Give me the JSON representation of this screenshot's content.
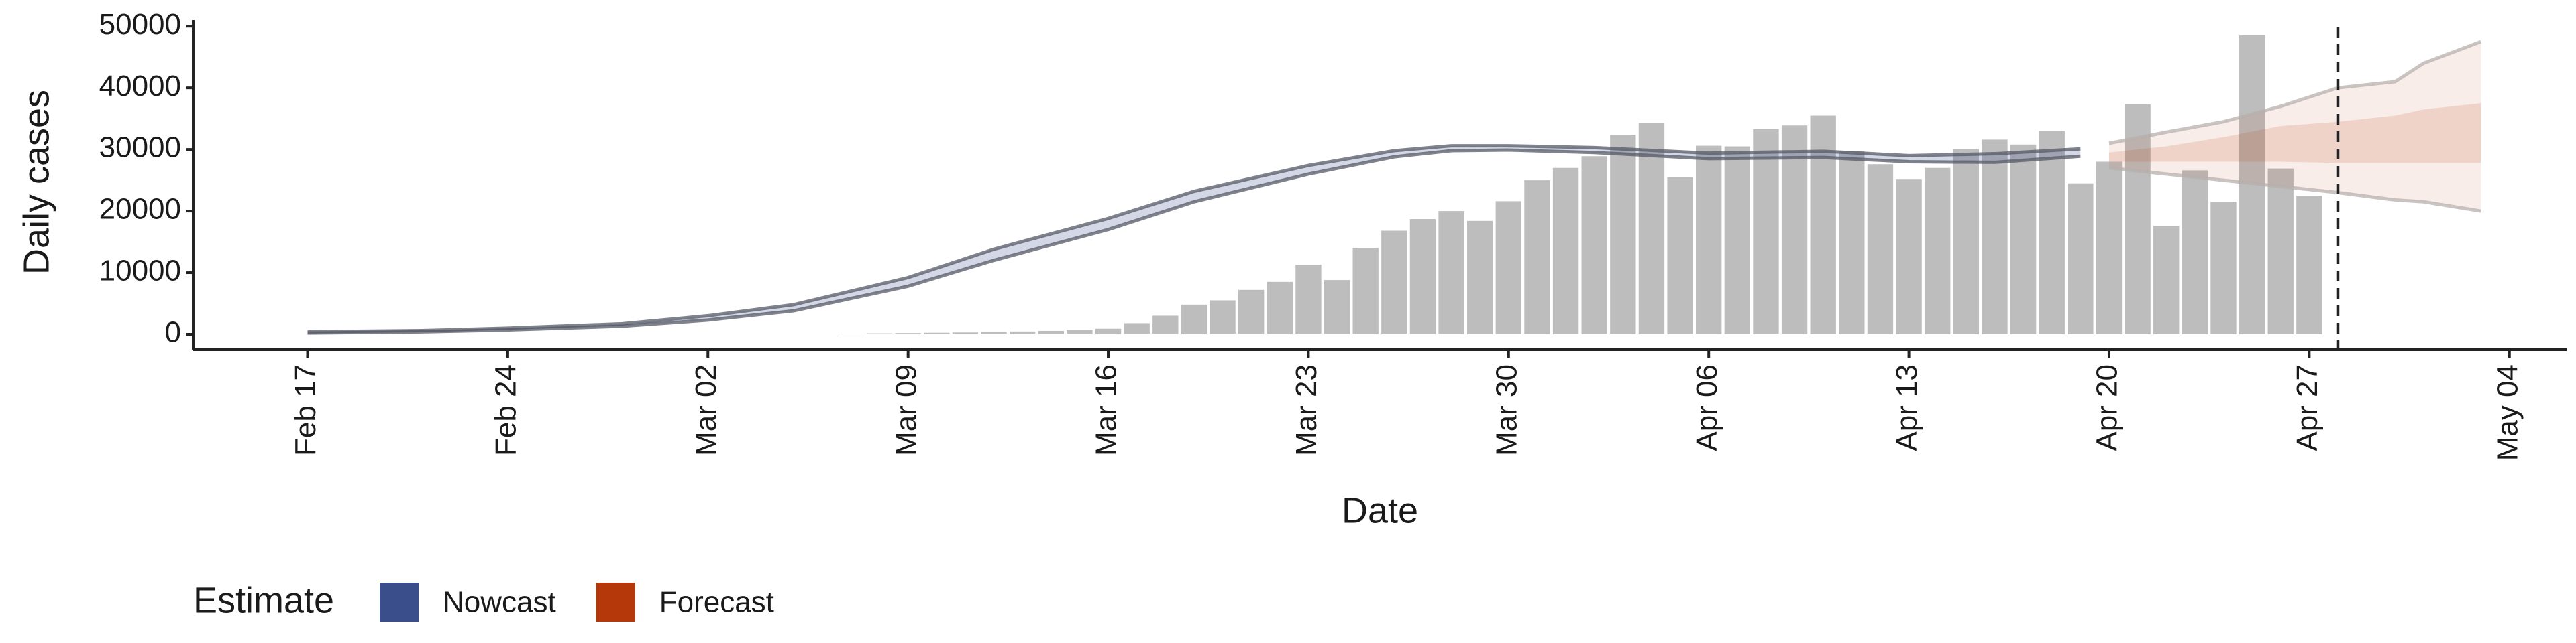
{
  "chart_data": {
    "type": "bar",
    "x_label": "Date",
    "y_label": "Daily cases",
    "x": [
      "Mar 07",
      "Mar 08",
      "Mar 09",
      "Mar 10",
      "Mar 11",
      "Mar 12",
      "Mar 13",
      "Mar 14",
      "Mar 15",
      "Mar 16",
      "Mar 17",
      "Mar 18",
      "Mar 19",
      "Mar 20",
      "Mar 21",
      "Mar 22",
      "Mar 23",
      "Mar 24",
      "Mar 25",
      "Mar 26",
      "Mar 27",
      "Mar 28",
      "Mar 29",
      "Mar 30",
      "Mar 31",
      "Apr 01",
      "Apr 02",
      "Apr 03",
      "Apr 04",
      "Apr 05",
      "Apr 06",
      "Apr 07",
      "Apr 08",
      "Apr 09",
      "Apr 10",
      "Apr 11",
      "Apr 12",
      "Apr 13",
      "Apr 14",
      "Apr 15",
      "Apr 16",
      "Apr 17",
      "Apr 18",
      "Apr 19",
      "Apr 20",
      "Apr 21",
      "Apr 22",
      "Apr 23",
      "Apr 24",
      "Apr 25",
      "Apr 26",
      "Apr 27"
    ],
    "values": [
      100,
      150,
      200,
      250,
      300,
      350,
      450,
      550,
      700,
      900,
      1800,
      3000,
      4800,
      5500,
      7200,
      8500,
      11300,
      8800,
      14000,
      16800,
      18700,
      20000,
      18400,
      21600,
      25000,
      27000,
      28900,
      32400,
      34300,
      25500,
      30600,
      30500,
      33300,
      33900,
      35500,
      29700,
      27600,
      25200,
      27000,
      30100,
      31600,
      30800,
      33000,
      24500,
      28000,
      37300,
      17600,
      26600,
      21500,
      48500,
      26900,
      22500
    ],
    "color": "#bdbdbd",
    "xlim": [
      "Feb 13",
      "May 06"
    ],
    "xticks": [
      "Feb 17",
      "Feb 24",
      "Mar 02",
      "Mar 09",
      "Mar 16",
      "Mar 23",
      "Mar 30",
      "Apr 06",
      "Apr 13",
      "Apr 20",
      "Apr 27",
      "May 04"
    ],
    "ylim": [
      -2500,
      51000
    ],
    "yticks": [
      0,
      10000,
      20000,
      30000,
      40000,
      50000
    ],
    "vline": "Apr 28",
    "legend": {
      "title": "Estimate"
    },
    "bands": [
      {
        "name": "Nowcast",
        "color": "#3a4e8c",
        "x": [
          "Feb 17",
          "Feb 21",
          "Feb 24",
          "Feb 28",
          "Mar 02",
          "Mar 05",
          "Mar 09",
          "Mar 12",
          "Mar 16",
          "Mar 19",
          "Mar 23",
          "Mar 26",
          "Mar 28",
          "Mar 30",
          "Apr 02",
          "Apr 06",
          "Apr 10",
          "Apr 13",
          "Apr 16",
          "Apr 19"
        ],
        "lower": [
          200,
          400,
          700,
          1300,
          2300,
          3800,
          7800,
          12000,
          17000,
          21500,
          26000,
          28800,
          29800,
          29900,
          29500,
          28500,
          28700,
          28000,
          27900,
          28900
        ],
        "upper": [
          400,
          600,
          1000,
          1700,
          3000,
          4800,
          9200,
          13800,
          18800,
          23200,
          27400,
          29800,
          30600,
          30600,
          30300,
          29400,
          29700,
          29000,
          29300,
          30100
        ]
      },
      {
        "name": "Forecast",
        "color": "#b5380a",
        "x": [
          "Apr 20",
          "Apr 22",
          "Apr 24",
          "Apr 26",
          "Apr 28",
          "Apr 30",
          "May 01",
          "May 03"
        ],
        "lower": [
          27000,
          26000,
          25000,
          24000,
          23000,
          21800,
          21500,
          20000
        ],
        "upper": [
          31000,
          32800,
          34500,
          37000,
          40000,
          41000,
          44000,
          47500
        ],
        "inner_lower": [
          28000,
          28000,
          28000,
          28000,
          27800,
          27800,
          27800,
          27800
        ],
        "inner_upper": [
          29500,
          30500,
          32000,
          33800,
          34500,
          35500,
          36500,
          37500
        ]
      }
    ]
  }
}
